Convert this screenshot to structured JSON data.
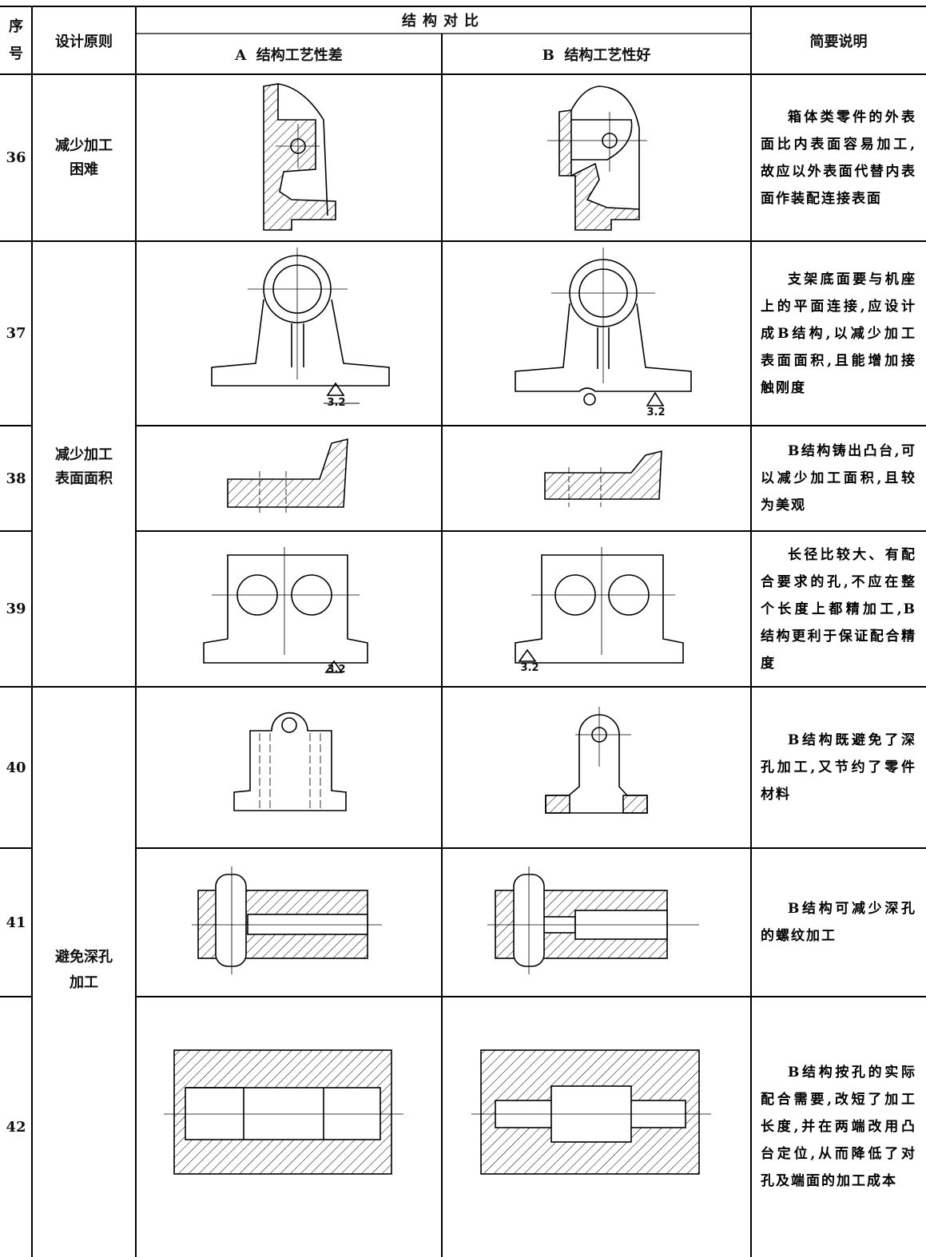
{
  "table": {
    "header": {
      "index": "序号",
      "principle": "设计原则",
      "comparison": "结构对比",
      "a": "A  结构工艺性差",
      "b": "B  结构工艺性好",
      "note": "简要说明"
    },
    "groups": [
      {
        "label": "减少加工困难"
      },
      {
        "label": "减少加工表面面积"
      },
      {
        "label": "避免深孔加工"
      }
    ],
    "rows": [
      {
        "no": "36",
        "note": "箱体类零件的外表面比内表面容易加工,故应以外表面代替内表面作装配连接表面"
      },
      {
        "no": "37",
        "note": "支架底面要与机座上的平面连接,应设计成B结构,以减少加工表面面积,且能增加接触刚度",
        "a_roughness": "3.2",
        "b_roughness": "3.2"
      },
      {
        "no": "38",
        "note": "B结构铸出凸台,可以减少加工面积,且较为美观"
      },
      {
        "no": "39",
        "note": "长径比较大、有配合要求的孔,不应在整个长度上都精加工,B结构更利于保证配合精度",
        "a_roughness": "3.2",
        "b_roughness": "3.2"
      },
      {
        "no": "40",
        "note": "B结构既避免了深孔加工,又节约了零件材料"
      },
      {
        "no": "41",
        "note": "B结构可减少深孔的螺纹加工"
      },
      {
        "no": "42",
        "note": "B结构按孔的实际配合需要,改短了加工长度,并在两端改用凸台定位,从而降低了对孔及端面的加工成本"
      }
    ]
  }
}
